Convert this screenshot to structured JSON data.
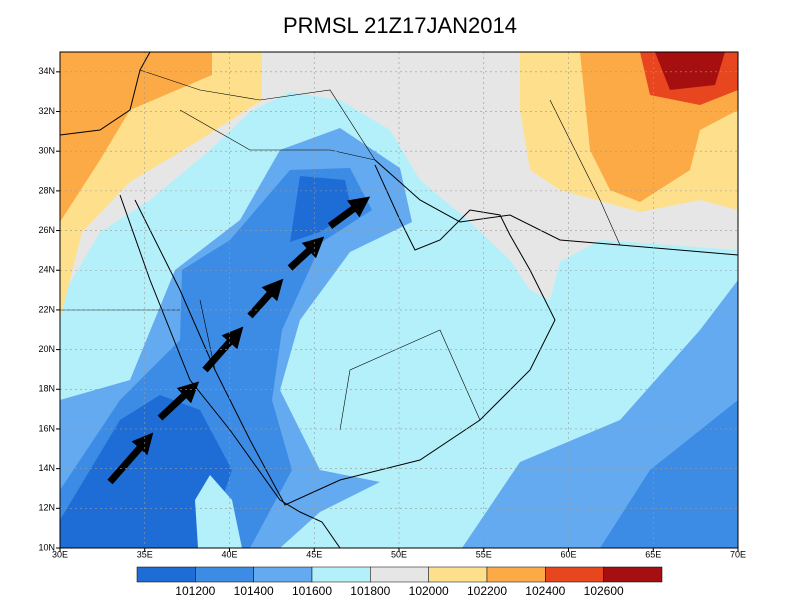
{
  "map": {
    "title": "PRMSL 21Z17JAN2014",
    "lon_ticks": [
      {
        "value": 30,
        "label": "30E"
      },
      {
        "value": 35,
        "label": "35E"
      },
      {
        "value": 40,
        "label": "40E"
      },
      {
        "value": 45,
        "label": "45E"
      },
      {
        "value": 50,
        "label": "50E"
      },
      {
        "value": 55,
        "label": "55E"
      },
      {
        "value": 60,
        "label": "60E"
      },
      {
        "value": 65,
        "label": "65E"
      },
      {
        "value": 70,
        "label": "70E"
      }
    ],
    "lat_ticks": [
      {
        "value": 10,
        "label": "10N"
      },
      {
        "value": 12,
        "label": "12N"
      },
      {
        "value": 14,
        "label": "14N"
      },
      {
        "value": 16,
        "label": "16N"
      },
      {
        "value": 18,
        "label": "18N"
      },
      {
        "value": 20,
        "label": "20N"
      },
      {
        "value": 22,
        "label": "22N"
      },
      {
        "value": 24,
        "label": "24N"
      },
      {
        "value": 26,
        "label": "26N"
      },
      {
        "value": 28,
        "label": "28N"
      },
      {
        "value": 30,
        "label": "30N"
      },
      {
        "value": 32,
        "label": "32N"
      },
      {
        "value": 34,
        "label": "34N"
      }
    ],
    "xlim": [
      30,
      70
    ],
    "ylim": [
      10,
      35
    ],
    "colorbar": {
      "levels": [
        101200,
        101400,
        101600,
        101800,
        102000,
        102200,
        102400,
        102600
      ],
      "colors": [
        "#1e6cd6",
        "#3c8ce6",
        "#64aaf0",
        "#b4f0fa",
        "#e6e6e6",
        "#fee08c",
        "#fcaa46",
        "#e8461e",
        "#a50f0f"
      ]
    }
  }
}
